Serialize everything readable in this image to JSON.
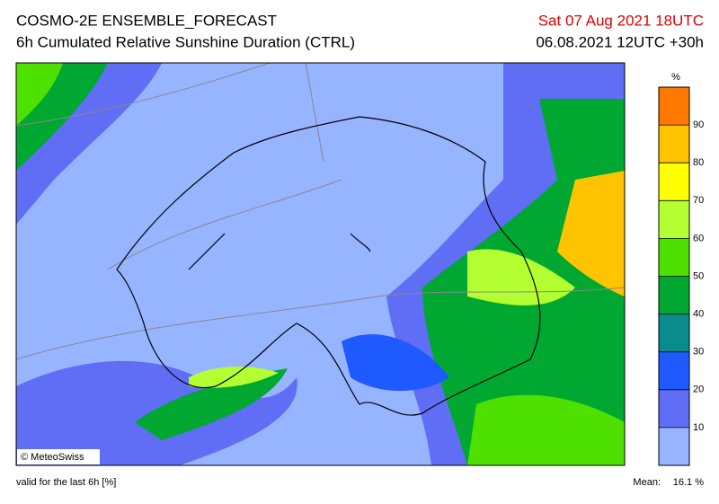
{
  "header": {
    "title": "COSMO-2E ENSEMBLE_FORECAST",
    "subtitle": "6h Cumulated Relative Sunshine Duration (CTRL)",
    "valid_date": "Sat 07 Aug 2021 18UTC",
    "run": "06.08.2021 12UTC +30h"
  },
  "map": {
    "credit": "© MeteoSwiss"
  },
  "legend": {
    "unit": "%",
    "ticks": [
      10,
      20,
      30,
      40,
      50,
      60,
      70,
      80,
      90
    ],
    "colors": [
      "#96b4ff",
      "#5f6ef5",
      "#1e5aff",
      "#0a8c8c",
      "#00a832",
      "#4ee100",
      "#b4ff32",
      "#ffff00",
      "#ffc300",
      "#ff7800"
    ]
  },
  "footer": {
    "note": "valid for the last 6h [%]",
    "mean_label": "Mean:",
    "mean_value": "16.1 %"
  }
}
